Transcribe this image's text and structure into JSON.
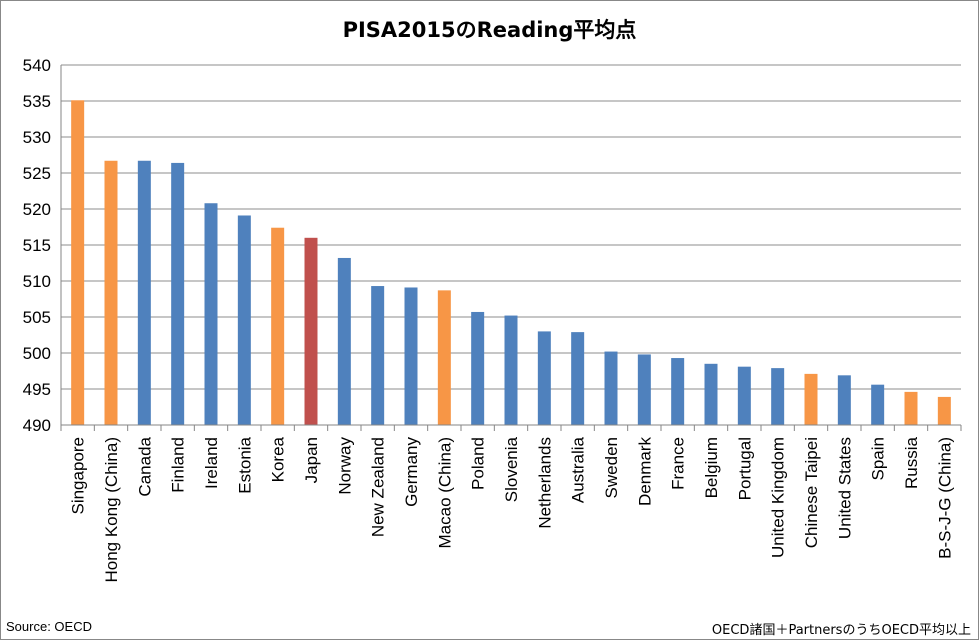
{
  "title": "PISA2015のReading平均点",
  "footer": {
    "source": "Source: OECD",
    "note": "OECD諸国＋PartnersのうちOECD平均以上"
  },
  "colors": {
    "oecd": "#4F81BD",
    "partner": "#F79646",
    "japan": "#C0504D",
    "grid": "#8C8C8C",
    "axis": "#868686"
  },
  "chart_data": {
    "type": "bar",
    "title": "PISA2015のReading平均点",
    "xlabel": "",
    "ylabel": "",
    "ylim": [
      490,
      540
    ],
    "yticks": [
      490,
      495,
      500,
      505,
      510,
      515,
      520,
      525,
      530,
      535,
      540
    ],
    "grid": true,
    "legend": "none",
    "categories": [
      "Singapore",
      "Hong Kong (China)",
      "Canada",
      "Finland",
      "Ireland",
      "Estonia",
      "Korea",
      "Japan",
      "Norway",
      "New Zealand",
      "Germany",
      "Macao (China)",
      "Poland",
      "Slovenia",
      "Netherlands",
      "Australia",
      "Sweden",
      "Denmark",
      "France",
      "Belgium",
      "Portugal",
      "United Kingdom",
      "Chinese Taipei",
      "United States",
      "Spain",
      "Russia",
      "B-S-J-G (China)"
    ],
    "values": [
      535.1,
      526.7,
      526.7,
      526.4,
      520.8,
      519.1,
      517.4,
      516.0,
      513.2,
      509.3,
      509.1,
      508.7,
      505.7,
      505.2,
      503.0,
      502.9,
      500.2,
      499.8,
      499.3,
      498.5,
      498.1,
      497.9,
      497.1,
      496.9,
      495.6,
      494.6,
      493.9
    ],
    "groups": [
      "partner",
      "partner",
      "oecd",
      "oecd",
      "oecd",
      "oecd",
      "partner",
      "japan",
      "oecd",
      "oecd",
      "oecd",
      "partner",
      "oecd",
      "oecd",
      "oecd",
      "oecd",
      "oecd",
      "oecd",
      "oecd",
      "oecd",
      "oecd",
      "oecd",
      "partner",
      "oecd",
      "oecd",
      "partner",
      "partner"
    ]
  }
}
